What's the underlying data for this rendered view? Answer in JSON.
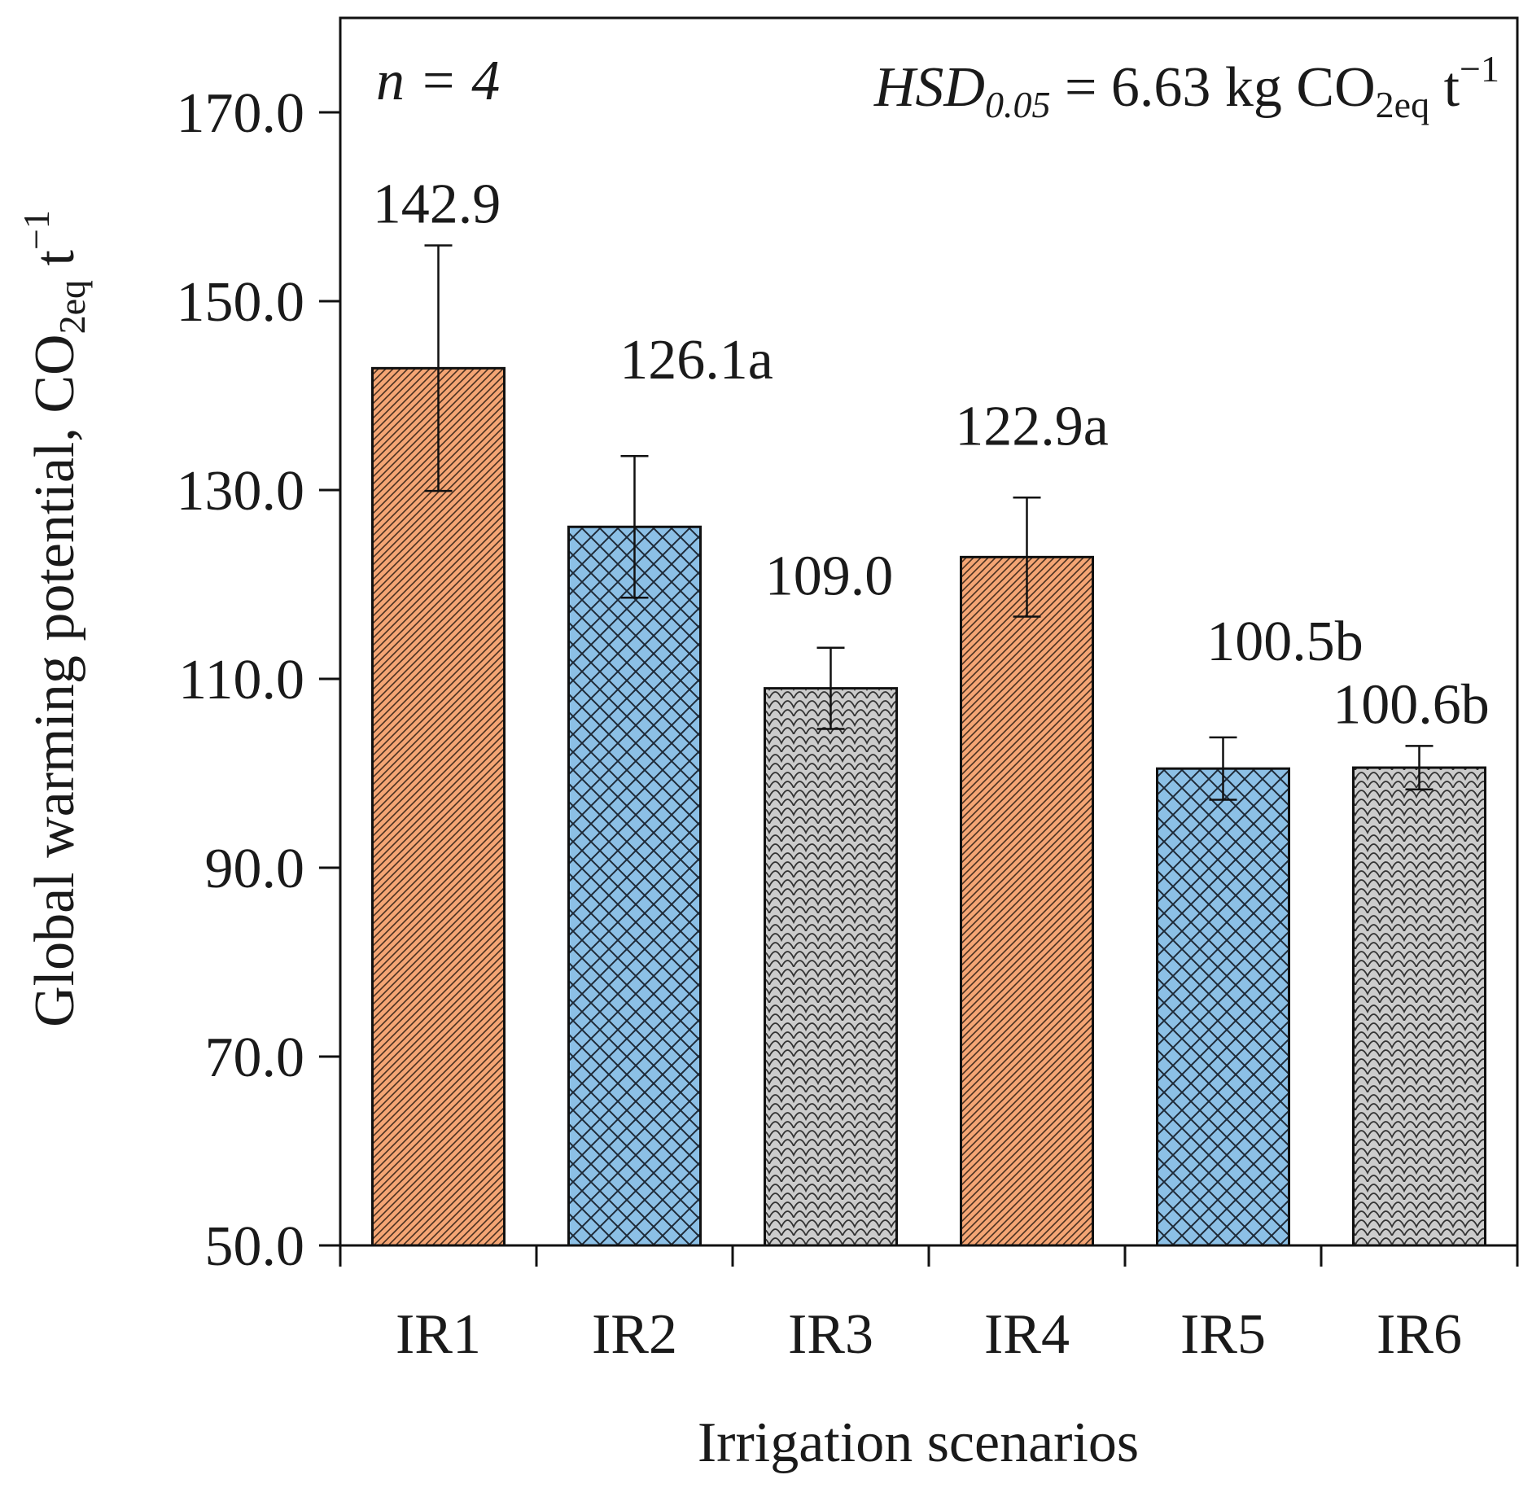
{
  "chart_data": {
    "type": "bar",
    "title": "",
    "xlabel": "Irrigation scenarios",
    "ylabel": {
      "main": "Global warming potential, CO",
      "sub": "2eq",
      "unit": " t",
      "sup": "−1"
    },
    "ylim": [
      50,
      180
    ],
    "yticks": [
      50,
      70,
      90,
      110,
      130,
      150,
      170
    ],
    "ytick_labels": [
      "50.0",
      "70.0",
      "90.0",
      "110.0",
      "130.0",
      "150.0",
      "170.0"
    ],
    "categories": [
      "IR1",
      "IR2",
      "IR3",
      "IR4",
      "IR5",
      "IR6"
    ],
    "values": [
      142.9,
      126.1,
      109.0,
      122.9,
      100.5,
      100.6
    ],
    "error": [
      13.0,
      7.5,
      4.3,
      6.3,
      3.3,
      2.3
    ],
    "value_labels": [
      "142.9",
      "126.1a",
      "109.0",
      "122.9a",
      "100.5b",
      "100.6b"
    ],
    "bar_styles": [
      {
        "pattern": "diagonal",
        "color": "#f4a574"
      },
      {
        "pattern": "crosshatch",
        "color": "#8cc0e6"
      },
      {
        "pattern": "scale",
        "color": "#cccccc"
      },
      {
        "pattern": "diagonal",
        "color": "#f4a574"
      },
      {
        "pattern": "crosshatch",
        "color": "#8cc0e6"
      },
      {
        "pattern": "scale",
        "color": "#cccccc"
      }
    ],
    "annotations": {
      "n_text": "n = 4",
      "hsd": {
        "italic": "HSD",
        "italic_sub": "0.05",
        "value": " = 6.63 kg CO",
        "sub": "2eq",
        "unit": " t",
        "sup": "−1"
      }
    },
    "grid": false,
    "legend": "none"
  }
}
